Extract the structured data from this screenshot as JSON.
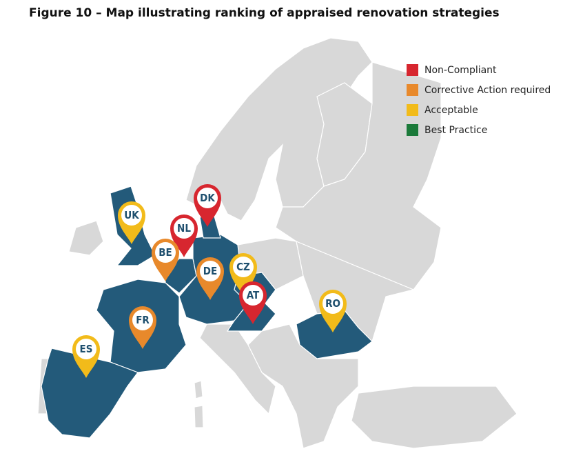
{
  "title": "Figure 10 – Map illustrating ranking of appraised renovation strategies",
  "legend": [
    {
      "label": "Non-Compliant",
      "color": "#d7262f"
    },
    {
      "label": "Corrective Action required",
      "color": "#e8892b"
    },
    {
      "label": "Acceptable",
      "color": "#f2bb1a"
    },
    {
      "label": "Best Practice",
      "color": "#1b7a3a"
    }
  ],
  "pins": [
    {
      "label": "DK",
      "color": "#d7262f"
    },
    {
      "label": "UK",
      "color": "#f2bb1a"
    },
    {
      "label": "NL",
      "color": "#d7262f"
    },
    {
      "label": "BE",
      "color": "#e8892b"
    },
    {
      "label": "DE",
      "color": "#e8892b"
    },
    {
      "label": "CZ",
      "color": "#f2bb1a"
    },
    {
      "label": "AT",
      "color": "#d7262f"
    },
    {
      "label": "FR",
      "color": "#e8892b"
    },
    {
      "label": "ES",
      "color": "#f2bb1a"
    },
    {
      "label": "RO",
      "color": "#f2bb1a"
    }
  ]
}
